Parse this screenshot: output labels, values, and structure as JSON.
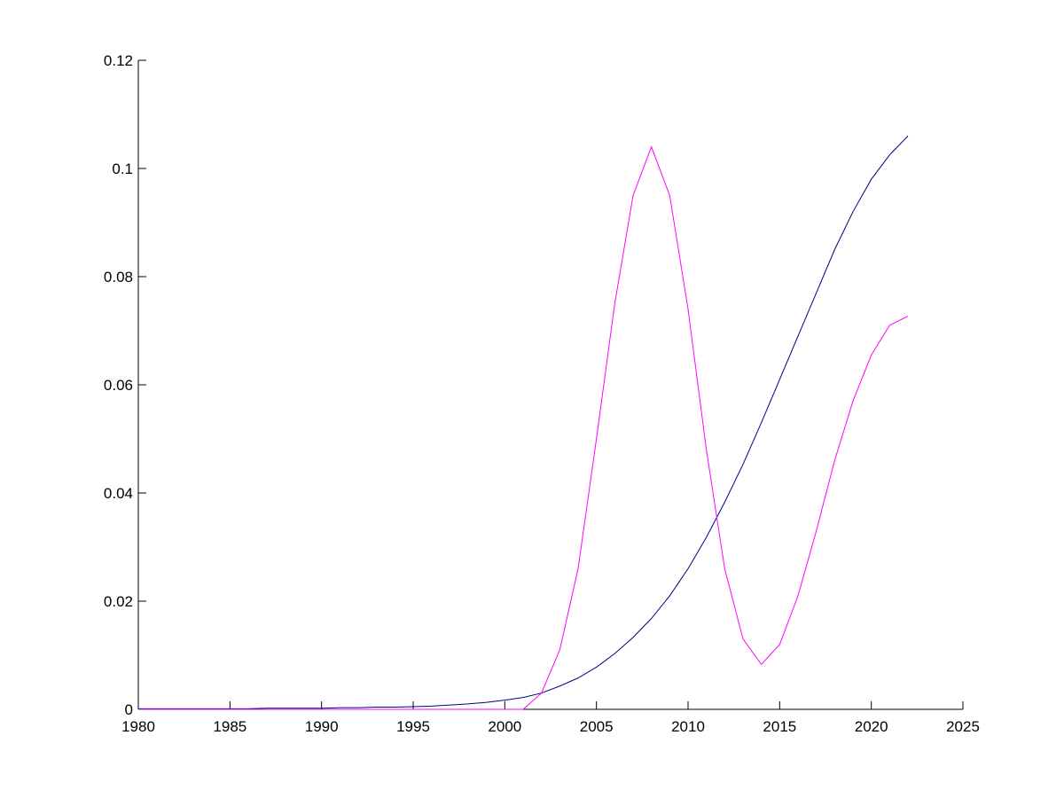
{
  "chart_data": {
    "type": "line",
    "x": [
      1980,
      1981,
      1982,
      1983,
      1984,
      1985,
      1986,
      1987,
      1988,
      1989,
      1990,
      1991,
      1992,
      1993,
      1994,
      1995,
      1996,
      1997,
      1998,
      1999,
      2000,
      2001,
      2002,
      2003,
      2004,
      2005,
      2006,
      2007,
      2008,
      2009,
      2010,
      2011,
      2012,
      2013,
      2014,
      2015,
      2016,
      2017,
      2018,
      2019,
      2020,
      2021,
      2022
    ],
    "series": [
      {
        "color": "#000080",
        "values": [
          0.0001,
          0.0001,
          0.0001,
          0.0001,
          0.0001,
          0.0001,
          0.0001,
          0.0002,
          0.0002,
          0.0002,
          0.0002,
          0.0003,
          0.0003,
          0.0004,
          0.0004,
          0.0005,
          0.0006,
          0.0008,
          0.001,
          0.0013,
          0.0017,
          0.0022,
          0.003,
          0.0043,
          0.0058,
          0.0078,
          0.0103,
          0.0133,
          0.0168,
          0.021,
          0.026,
          0.0318,
          0.0383,
          0.0453,
          0.053,
          0.061,
          0.069,
          0.077,
          0.085,
          0.092,
          0.098,
          0.1025,
          0.106
        ]
      },
      {
        "color": "#ff00ff",
        "values": [
          0,
          0,
          0,
          0,
          0,
          0,
          0,
          0,
          0,
          0,
          0,
          0,
          0,
          0,
          0,
          0,
          0,
          0,
          0,
          0,
          0,
          0,
          0.003,
          0.011,
          0.026,
          0.05,
          0.075,
          0.095,
          0.104,
          0.095,
          0.074,
          0.048,
          0.026,
          0.013,
          0.0083,
          0.012,
          0.021,
          0.033,
          0.046,
          0.057,
          0.0655,
          0.071,
          0.0727
        ]
      }
    ],
    "xlim": [
      1980,
      2025
    ],
    "xticks": [
      1980,
      1985,
      1990,
      1995,
      2000,
      2005,
      2010,
      2015,
      2020,
      2025
    ],
    "ylim": [
      0,
      0.12
    ],
    "yticks": [
      0,
      0.02,
      0.04,
      0.06,
      0.08,
      0.1,
      0.12
    ]
  }
}
